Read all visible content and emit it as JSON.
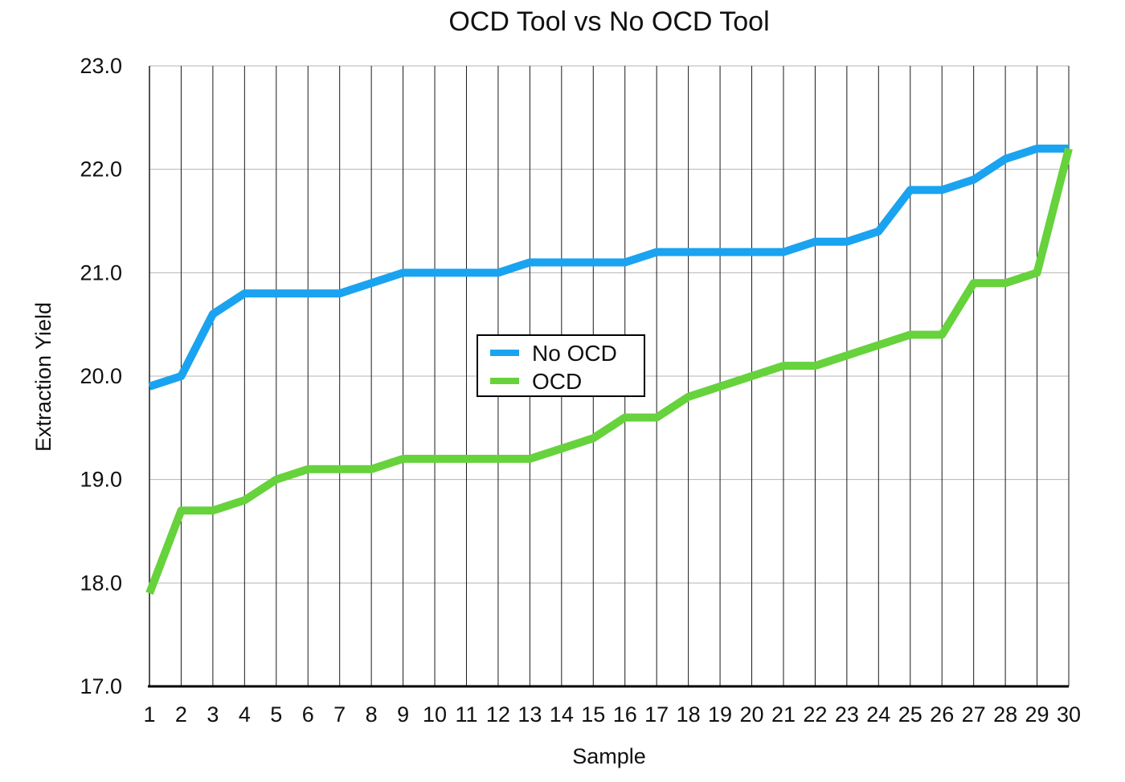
{
  "chart_data": {
    "type": "line",
    "title": "OCD Tool vs No OCD Tool",
    "xlabel": "Sample",
    "ylabel": "Extraction Yield",
    "x": [
      1,
      2,
      3,
      4,
      5,
      6,
      7,
      8,
      9,
      10,
      11,
      12,
      13,
      14,
      15,
      16,
      17,
      18,
      19,
      20,
      21,
      22,
      23,
      24,
      25,
      26,
      27,
      28,
      29,
      30
    ],
    "ylim": [
      17.0,
      23.0
    ],
    "yticks": [
      "17.0",
      "18.0",
      "19.0",
      "20.0",
      "21.0",
      "22.0",
      "23.0"
    ],
    "grid": true,
    "legend_position": "center",
    "series": [
      {
        "name": "No OCD",
        "color": "#1aa3f0",
        "values": [
          19.9,
          20.0,
          20.6,
          20.8,
          20.8,
          20.8,
          20.8,
          20.9,
          21.0,
          21.0,
          21.0,
          21.0,
          21.1,
          21.1,
          21.1,
          21.1,
          21.2,
          21.2,
          21.2,
          21.2,
          21.2,
          21.3,
          21.3,
          21.4,
          21.8,
          21.8,
          21.9,
          22.1,
          22.2,
          22.2
        ]
      },
      {
        "name": "OCD",
        "color": "#66d23c",
        "values": [
          17.9,
          18.7,
          18.7,
          18.8,
          19.0,
          19.1,
          19.1,
          19.1,
          19.2,
          19.2,
          19.2,
          19.2,
          19.2,
          19.3,
          19.4,
          19.6,
          19.6,
          19.8,
          19.9,
          20.0,
          20.1,
          20.1,
          20.2,
          20.3,
          20.4,
          20.4,
          20.9,
          20.9,
          21.0,
          22.2
        ]
      }
    ]
  }
}
